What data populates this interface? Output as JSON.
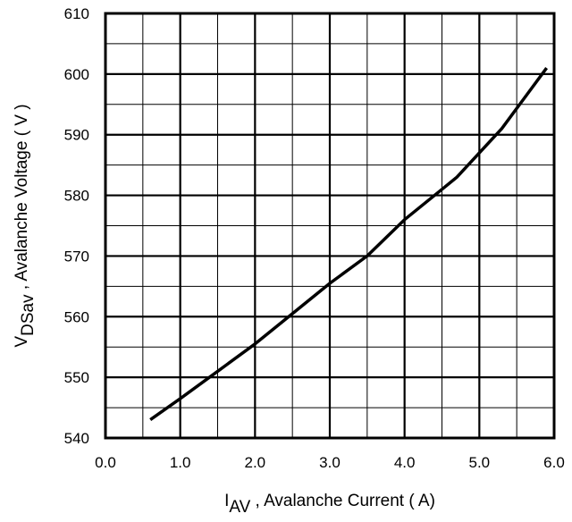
{
  "chart_data": {
    "type": "line",
    "title": "",
    "xlabel": {
      "main": "I",
      "subscript": "AV",
      "rest": " , Avalanche Current ( A)"
    },
    "ylabel": {
      "main": "V",
      "subscript": "DSav",
      "rest": " , Avalanche Voltage ( V )"
    },
    "xlim": [
      0,
      6
    ],
    "ylim": [
      540,
      610
    ],
    "x_ticks": [
      "0.0",
      "1.0",
      "2.0",
      "3.0",
      "4.0",
      "5.0",
      "6.0"
    ],
    "y_ticks": [
      "540",
      "550",
      "560",
      "570",
      "580",
      "590",
      "600",
      "610"
    ],
    "grid": true,
    "x_minor_step": 0.5,
    "y_minor_step": 5,
    "series": [
      {
        "x": [
          0.6,
          1.0,
          1.5,
          2.0,
          2.5,
          3.0,
          3.5,
          4.0,
          4.5,
          4.7,
          5.0,
          5.3,
          5.6,
          5.9
        ],
        "y": [
          543,
          546.5,
          551,
          555.5,
          560.5,
          565.5,
          570,
          576,
          581,
          583,
          587,
          591,
          596,
          601
        ]
      }
    ],
    "colors": {
      "line": "#000000",
      "grid": "#000000",
      "background": "#ffffff"
    }
  }
}
